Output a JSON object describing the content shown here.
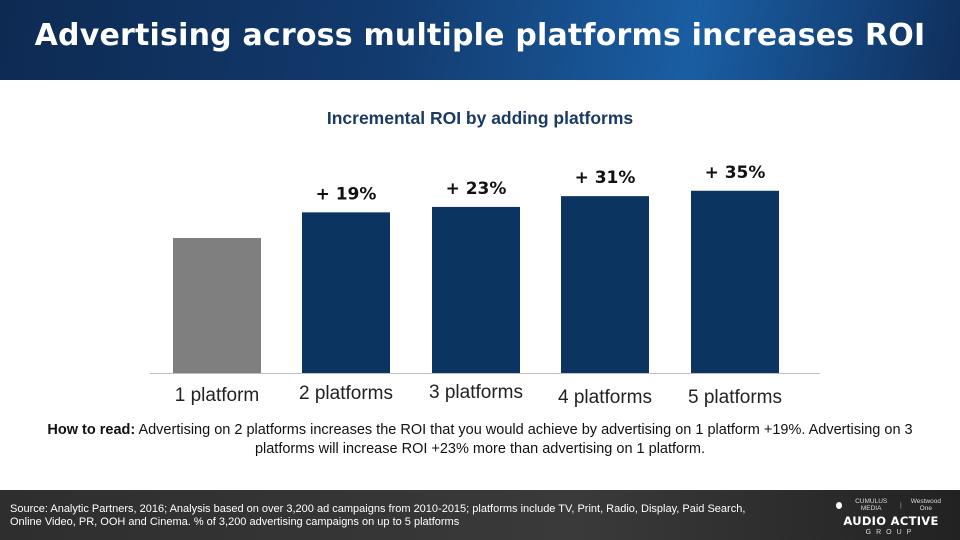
{
  "header": {
    "title": "Advertising across multiple platforms increases ROI"
  },
  "how_to_read": {
    "lead": "How to read:",
    "text": "Advertising on 2 platforms increases the ROI that you would achieve by advertising on 1 platform +19%. Advertising on 3 platforms will increase ROI +23% more than advertising on 1 platform."
  },
  "footer": {
    "source": "Source: Analytic Partners, 2016; Analysis based on over 3,200 ad campaigns from 2010-2015; platforms include TV, Print, Radio, Display, Paid Search, Online Video, PR, OOH and Cinema. % of 3,200 advertising campaigns on up to 5 platforms",
    "brand_top_left": "CUMULUS MEDIA",
    "brand_top_right": "Westwood One",
    "brand_main": "AUDIO ACTIVE",
    "brand_sub": "GROUP"
  },
  "colors": {
    "baseline_bar": "#7f7f7f",
    "bar": "#0b3461",
    "header_bg": "#123a6d"
  },
  "chart_data": {
    "type": "bar",
    "title": "Incremental ROI by adding platforms",
    "categories": [
      "1 platform",
      "2 platforms",
      "3 platforms",
      "4 platforms",
      "5 platforms"
    ],
    "values": [
      100,
      119,
      123,
      131,
      135
    ],
    "data_labels": [
      "",
      "+ 19%",
      "+ 23%",
      "+ 31%",
      "+ 35%"
    ],
    "ylim": [
      0,
      140
    ],
    "grid": false,
    "legend": "none"
  }
}
